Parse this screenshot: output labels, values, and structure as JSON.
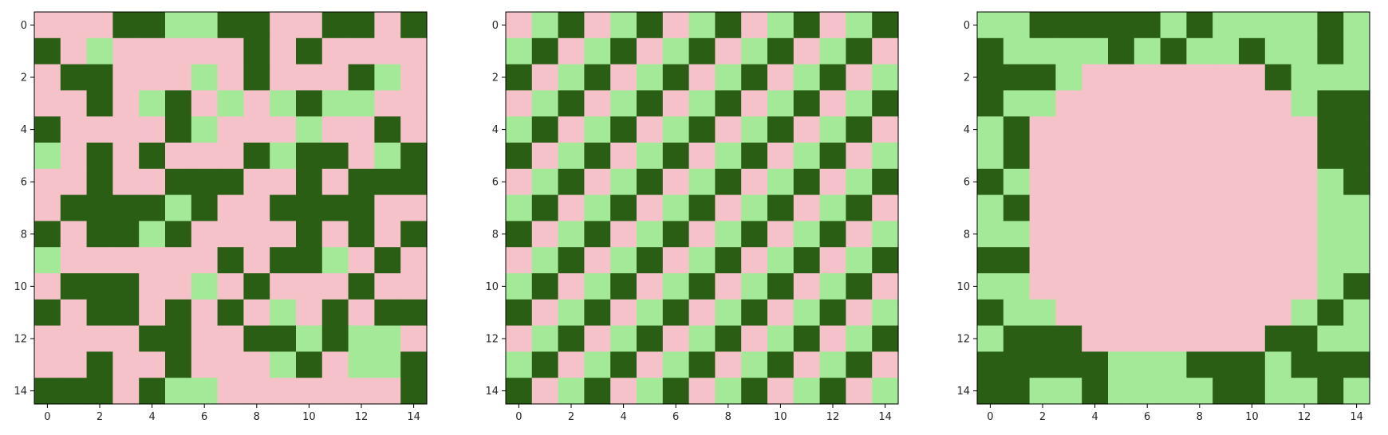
{
  "colors": {
    "pink": "#f4c2c8",
    "light_green": "#a3e998",
    "dark_green": "#2a5e14"
  },
  "chart_data": [
    {
      "type": "heatmap",
      "value_legend": {
        "0": "pink",
        "1": "light_green",
        "2": "dark_green"
      },
      "xlim": [
        -0.5,
        14.5
      ],
      "ylim": [
        14.5,
        -0.5
      ],
      "xticks": [
        "0",
        "2",
        "4",
        "6",
        "8",
        "10",
        "12",
        "14"
      ],
      "yticks": [
        "0",
        "2",
        "4",
        "6",
        "8",
        "10",
        "12",
        "14"
      ],
      "grid": false,
      "matrix": [
        [
          0,
          0,
          0,
          2,
          2,
          1,
          1,
          2,
          2,
          0,
          0,
          2,
          2,
          0,
          2
        ],
        [
          2,
          0,
          1,
          0,
          0,
          0,
          0,
          0,
          2,
          0,
          2,
          0,
          0,
          0,
          0
        ],
        [
          0,
          2,
          2,
          0,
          0,
          0,
          1,
          0,
          2,
          0,
          0,
          0,
          2,
          1,
          0
        ],
        [
          0,
          0,
          2,
          0,
          1,
          2,
          0,
          1,
          0,
          1,
          2,
          1,
          1,
          0,
          0
        ],
        [
          2,
          0,
          0,
          0,
          0,
          2,
          1,
          0,
          0,
          0,
          1,
          0,
          0,
          2,
          0
        ],
        [
          1,
          0,
          2,
          0,
          2,
          0,
          0,
          0,
          2,
          1,
          2,
          2,
          0,
          1,
          2
        ],
        [
          0,
          0,
          2,
          0,
          0,
          2,
          2,
          2,
          0,
          0,
          2,
          0,
          2,
          2,
          2
        ],
        [
          0,
          2,
          2,
          2,
          2,
          1,
          2,
          0,
          0,
          2,
          2,
          2,
          2,
          0,
          0
        ],
        [
          2,
          0,
          2,
          2,
          1,
          2,
          0,
          0,
          0,
          0,
          2,
          0,
          2,
          0,
          2
        ],
        [
          1,
          0,
          0,
          0,
          0,
          0,
          0,
          2,
          0,
          2,
          2,
          1,
          0,
          2,
          0
        ],
        [
          0,
          2,
          2,
          2,
          0,
          0,
          1,
          0,
          2,
          0,
          0,
          0,
          2,
          0,
          0
        ],
        [
          2,
          0,
          2,
          2,
          0,
          2,
          0,
          2,
          0,
          1,
          0,
          2,
          0,
          2,
          2
        ],
        [
          0,
          0,
          0,
          0,
          2,
          2,
          0,
          0,
          2,
          2,
          1,
          2,
          1,
          1,
          0
        ],
        [
          0,
          0,
          2,
          0,
          0,
          2,
          0,
          0,
          0,
          1,
          2,
          0,
          1,
          1,
          2
        ],
        [
          2,
          2,
          2,
          0,
          2,
          1,
          1,
          0,
          0,
          0,
          0,
          0,
          0,
          0,
          2
        ]
      ]
    },
    {
      "type": "heatmap",
      "value_legend": {
        "0": "pink",
        "1": "light_green",
        "2": "dark_green"
      },
      "xlim": [
        -0.5,
        14.5
      ],
      "ylim": [
        14.5,
        -0.5
      ],
      "xticks": [
        "0",
        "2",
        "4",
        "6",
        "8",
        "10",
        "12",
        "14"
      ],
      "yticks": [
        "0",
        "2",
        "4",
        "6",
        "8",
        "10",
        "12",
        "14"
      ],
      "grid": false,
      "matrix": [
        [
          0,
          1,
          2,
          0,
          1,
          2,
          0,
          1,
          2,
          0,
          1,
          2,
          0,
          1,
          2
        ],
        [
          1,
          2,
          0,
          1,
          2,
          0,
          1,
          2,
          0,
          1,
          2,
          0,
          1,
          2,
          0
        ],
        [
          2,
          0,
          1,
          2,
          0,
          1,
          2,
          0,
          1,
          2,
          0,
          1,
          2,
          0,
          1
        ],
        [
          0,
          1,
          2,
          0,
          1,
          2,
          0,
          1,
          2,
          0,
          1,
          2,
          0,
          1,
          2
        ],
        [
          1,
          2,
          0,
          1,
          2,
          0,
          1,
          2,
          0,
          1,
          2,
          0,
          1,
          2,
          0
        ],
        [
          2,
          0,
          1,
          2,
          0,
          1,
          2,
          0,
          1,
          2,
          0,
          1,
          2,
          0,
          1
        ],
        [
          0,
          1,
          2,
          0,
          1,
          2,
          0,
          1,
          2,
          0,
          1,
          2,
          0,
          1,
          2
        ],
        [
          1,
          2,
          0,
          1,
          2,
          0,
          1,
          2,
          0,
          1,
          2,
          0,
          1,
          2,
          0
        ],
        [
          2,
          0,
          1,
          2,
          0,
          1,
          2,
          0,
          1,
          2,
          0,
          1,
          2,
          0,
          1
        ],
        [
          0,
          1,
          2,
          0,
          1,
          2,
          0,
          1,
          2,
          0,
          1,
          2,
          0,
          1,
          2
        ],
        [
          1,
          2,
          0,
          1,
          2,
          0,
          1,
          2,
          0,
          1,
          2,
          0,
          1,
          2,
          0
        ],
        [
          2,
          0,
          1,
          2,
          0,
          1,
          2,
          0,
          1,
          2,
          0,
          1,
          2,
          0,
          1
        ],
        [
          0,
          1,
          2,
          0,
          1,
          2,
          0,
          1,
          2,
          0,
          1,
          2,
          0,
          1,
          2
        ],
        [
          1,
          2,
          0,
          1,
          2,
          0,
          1,
          2,
          0,
          1,
          2,
          0,
          1,
          2,
          0
        ],
        [
          2,
          0,
          1,
          2,
          0,
          1,
          2,
          0,
          1,
          2,
          0,
          1,
          2,
          0,
          1
        ]
      ]
    },
    {
      "type": "heatmap",
      "value_legend": {
        "0": "pink",
        "1": "light_green",
        "2": "dark_green"
      },
      "xlim": [
        -0.5,
        14.5
      ],
      "ylim": [
        14.5,
        -0.5
      ],
      "xticks": [
        "0",
        "2",
        "4",
        "6",
        "8",
        "10",
        "12",
        "14"
      ],
      "yticks": [
        "0",
        "2",
        "4",
        "6",
        "8",
        "10",
        "12",
        "14"
      ],
      "grid": false,
      "matrix": [
        [
          1,
          1,
          2,
          2,
          2,
          2,
          2,
          1,
          2,
          1,
          1,
          1,
          1,
          2,
          1
        ],
        [
          2,
          1,
          1,
          1,
          1,
          2,
          1,
          2,
          1,
          1,
          2,
          1,
          1,
          2,
          1
        ],
        [
          2,
          2,
          2,
          1,
          0,
          0,
          0,
          0,
          0,
          0,
          0,
          2,
          1,
          1,
          1
        ],
        [
          2,
          1,
          1,
          0,
          0,
          0,
          0,
          0,
          0,
          0,
          0,
          0,
          1,
          2,
          2
        ],
        [
          1,
          2,
          0,
          0,
          0,
          0,
          0,
          0,
          0,
          0,
          0,
          0,
          0,
          2,
          2
        ],
        [
          1,
          2,
          0,
          0,
          0,
          0,
          0,
          0,
          0,
          0,
          0,
          0,
          0,
          2,
          2
        ],
        [
          2,
          1,
          0,
          0,
          0,
          0,
          0,
          0,
          0,
          0,
          0,
          0,
          0,
          1,
          2
        ],
        [
          1,
          2,
          0,
          0,
          0,
          0,
          0,
          0,
          0,
          0,
          0,
          0,
          0,
          1,
          1
        ],
        [
          1,
          1,
          0,
          0,
          0,
          0,
          0,
          0,
          0,
          0,
          0,
          0,
          0,
          1,
          1
        ],
        [
          2,
          2,
          0,
          0,
          0,
          0,
          0,
          0,
          0,
          0,
          0,
          0,
          0,
          1,
          1
        ],
        [
          1,
          1,
          0,
          0,
          0,
          0,
          0,
          0,
          0,
          0,
          0,
          0,
          0,
          1,
          2
        ],
        [
          2,
          1,
          1,
          0,
          0,
          0,
          0,
          0,
          0,
          0,
          0,
          0,
          1,
          2,
          1
        ],
        [
          1,
          2,
          2,
          2,
          0,
          0,
          0,
          0,
          0,
          0,
          0,
          2,
          2,
          1,
          1
        ],
        [
          2,
          2,
          2,
          2,
          2,
          1,
          1,
          1,
          2,
          2,
          2,
          1,
          2,
          2,
          2
        ],
        [
          2,
          2,
          1,
          1,
          2,
          1,
          1,
          1,
          1,
          2,
          2,
          1,
          1,
          2,
          1
        ]
      ]
    }
  ]
}
